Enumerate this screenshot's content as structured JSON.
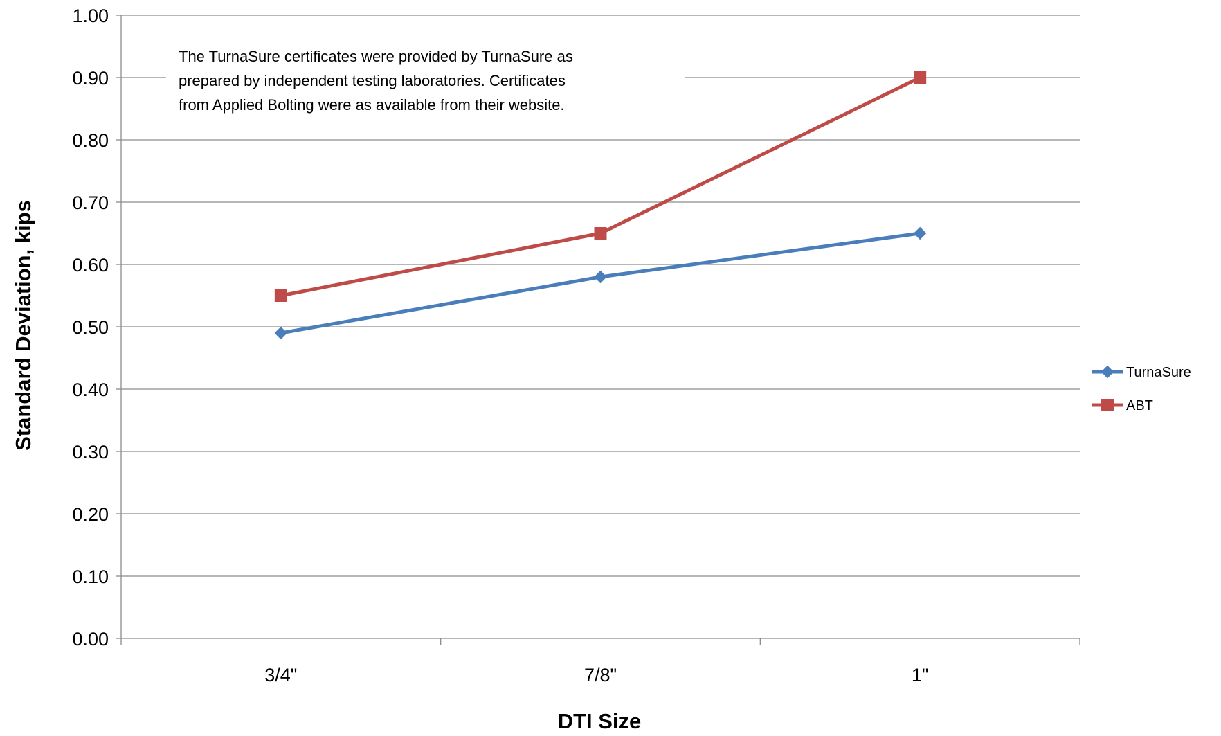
{
  "chart_data": {
    "type": "line",
    "title": "",
    "xlabel": "DTI Size",
    "ylabel": "Standard Deviation, kips",
    "categories": [
      "3/4\"",
      "7/8\"",
      "1\""
    ],
    "ylim": [
      0,
      1
    ],
    "ytick_step": 0.1,
    "grid": true,
    "legend_position": "right",
    "note": [
      "The TurnaSure certificates were provided by TurnaSure as",
      "prepared by independent testing laboratories. Certificates",
      "from Applied Bolting were as available from their website."
    ],
    "series": [
      {
        "name": "TurnaSure",
        "values": [
          0.49,
          0.58,
          0.65
        ],
        "color": "#4a7ebb",
        "marker": "diamond"
      },
      {
        "name": "ABT",
        "values": [
          0.55,
          0.65,
          0.9
        ],
        "color": "#be4b48",
        "marker": "square"
      }
    ]
  }
}
